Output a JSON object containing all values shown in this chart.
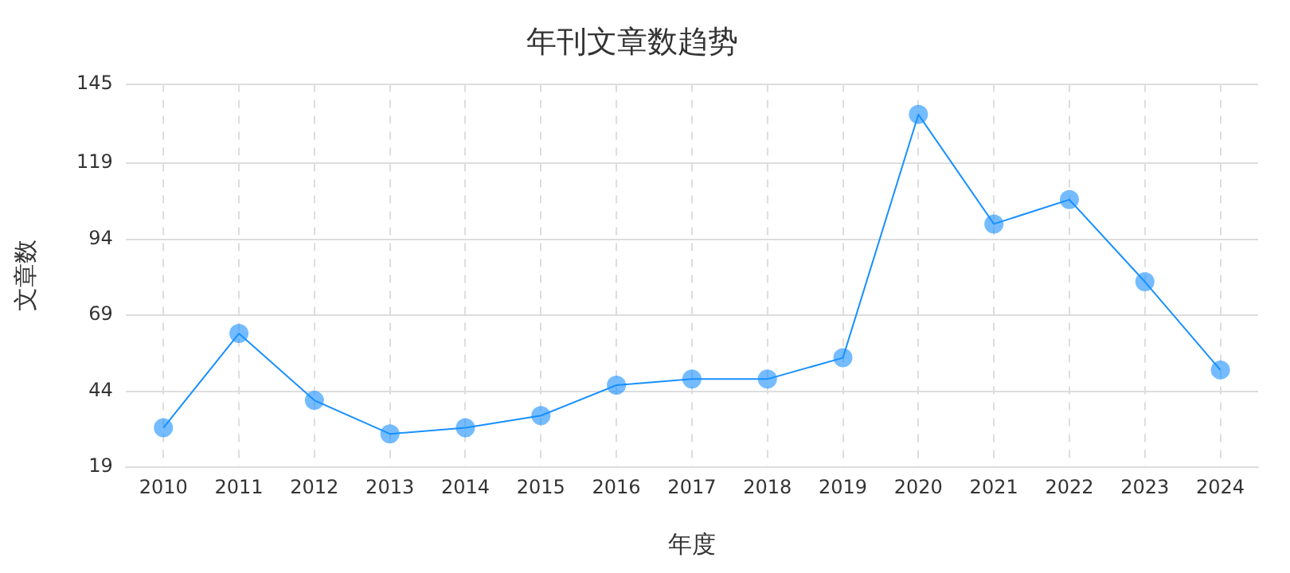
{
  "chart_data": {
    "type": "line",
    "title": "年刊文章数趋势",
    "xlabel": "年度",
    "ylabel": "文章数",
    "categories": [
      "2010",
      "2011",
      "2012",
      "2013",
      "2014",
      "2015",
      "2016",
      "2017",
      "2018",
      "2019",
      "2020",
      "2021",
      "2022",
      "2023",
      "2024"
    ],
    "series": [
      {
        "color": "#1890ff",
        "values": [
          32,
          63,
          41,
          30,
          32,
          36,
          46,
          48,
          48,
          55,
          135,
          99,
          107,
          80,
          51
        ]
      }
    ],
    "ylim": [
      19,
      145
    ],
    "yticks": [
      19,
      44,
      69,
      94,
      119,
      145
    ],
    "grid": true,
    "legend": false,
    "marker": "circle",
    "line_style": "solid"
  }
}
